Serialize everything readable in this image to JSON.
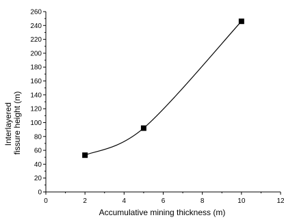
{
  "chart_data": {
    "type": "line",
    "xlabel": "Accumulative mining thickness (m)",
    "ylabel_lines": [
      "Interlayered",
      "fissure height (m)"
    ],
    "xlim": [
      0,
      12
    ],
    "ylim": [
      0,
      260
    ],
    "x_ticks": [
      0,
      2,
      4,
      6,
      8,
      10,
      12
    ],
    "y_ticks": [
      0,
      20,
      40,
      60,
      80,
      100,
      120,
      140,
      160,
      180,
      200,
      220,
      240,
      260
    ],
    "series": [
      {
        "x": [
          2,
          5,
          10
        ],
        "y": [
          53,
          92,
          246
        ],
        "marker": "square",
        "line": "smooth"
      }
    ],
    "grid": false,
    "legend": "none",
    "colors": {
      "line": "#000000",
      "marker": "#000000",
      "axis": "#000000"
    }
  }
}
